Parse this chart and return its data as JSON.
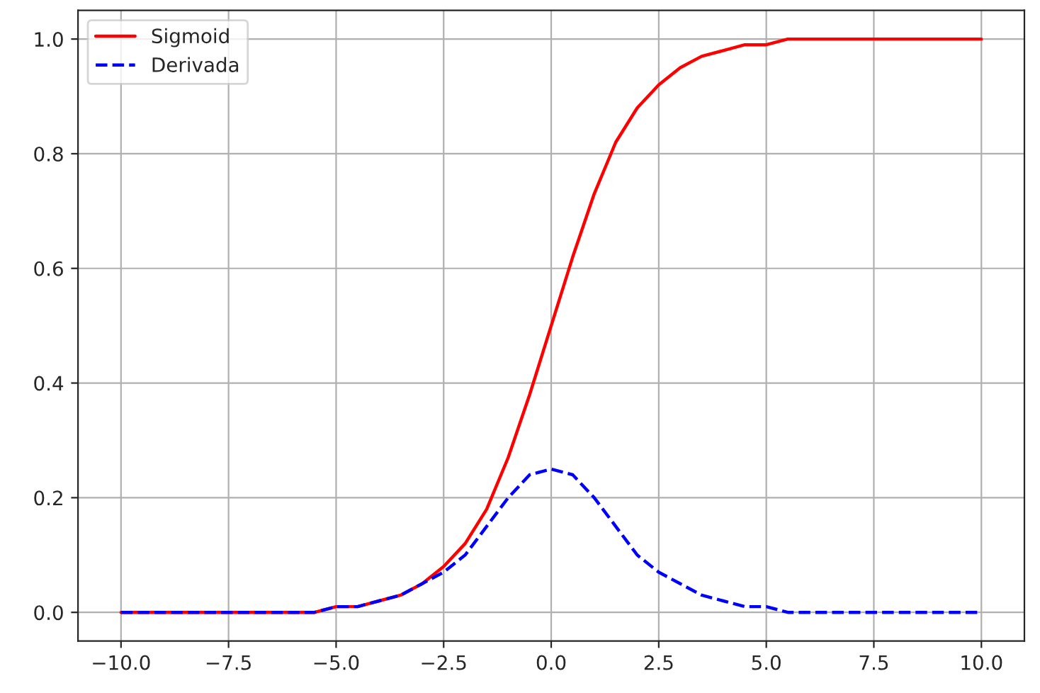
{
  "chart_data": {
    "type": "line",
    "x": [
      -10,
      -9.5,
      -9,
      -8.5,
      -8,
      -7.5,
      -7,
      -6.5,
      -6,
      -5.5,
      -5,
      -4.5,
      -4,
      -3.5,
      -3,
      -2.5,
      -2,
      -1.5,
      -1,
      -0.5,
      0,
      0.5,
      1,
      1.5,
      2,
      2.5,
      3,
      3.5,
      4,
      4.5,
      5,
      5.5,
      6,
      6.5,
      7,
      7.5,
      8,
      8.5,
      9,
      9.5,
      10
    ],
    "series": [
      {
        "name": "Sigmoid",
        "color": "#ff0000",
        "line_style": "solid",
        "values": [
          0,
          0,
          0,
          0,
          0,
          0,
          0,
          0,
          0,
          0,
          0.01,
          0.01,
          0.02,
          0.03,
          0.05,
          0.08,
          0.12,
          0.18,
          0.27,
          0.38,
          0.5,
          0.62,
          0.73,
          0.82,
          0.88,
          0.92,
          0.95,
          0.97,
          0.98,
          0.99,
          0.99,
          1,
          1,
          1,
          1,
          1,
          1,
          1,
          1,
          1,
          1
        ]
      },
      {
        "name": "Derivada",
        "color": "#0000ff",
        "line_style": "dashed",
        "values": [
          0,
          0,
          0,
          0,
          0,
          0,
          0,
          0,
          0,
          0,
          0.01,
          0.01,
          0.02,
          0.03,
          0.05,
          0.07,
          0.1,
          0.15,
          0.2,
          0.24,
          0.25,
          0.24,
          0.2,
          0.15,
          0.1,
          0.07,
          0.05,
          0.03,
          0.02,
          0.01,
          0.01,
          0,
          0,
          0,
          0,
          0,
          0,
          0,
          0,
          0,
          0
        ]
      }
    ],
    "xlim": [
      -11,
      11
    ],
    "ylim": [
      -0.05,
      1.05
    ],
    "xticks": [
      {
        "value": -10,
        "label": "−10.0"
      },
      {
        "value": -7.5,
        "label": "−7.5"
      },
      {
        "value": -5,
        "label": "−5.0"
      },
      {
        "value": -2.5,
        "label": "−2.5"
      },
      {
        "value": 0,
        "label": "0.0"
      },
      {
        "value": 2.5,
        "label": "2.5"
      },
      {
        "value": 5,
        "label": "5.0"
      },
      {
        "value": 7.5,
        "label": "7.5"
      },
      {
        "value": 10,
        "label": "10.0"
      }
    ],
    "yticks": [
      {
        "value": 0,
        "label": "0.0"
      },
      {
        "value": 0.2,
        "label": "0.2"
      },
      {
        "value": 0.4,
        "label": "0.4"
      },
      {
        "value": 0.6,
        "label": "0.6"
      },
      {
        "value": 0.8,
        "label": "0.8"
      },
      {
        "value": 1,
        "label": "1.0"
      }
    ],
    "grid": true,
    "legend": "top left",
    "marker": "none"
  }
}
